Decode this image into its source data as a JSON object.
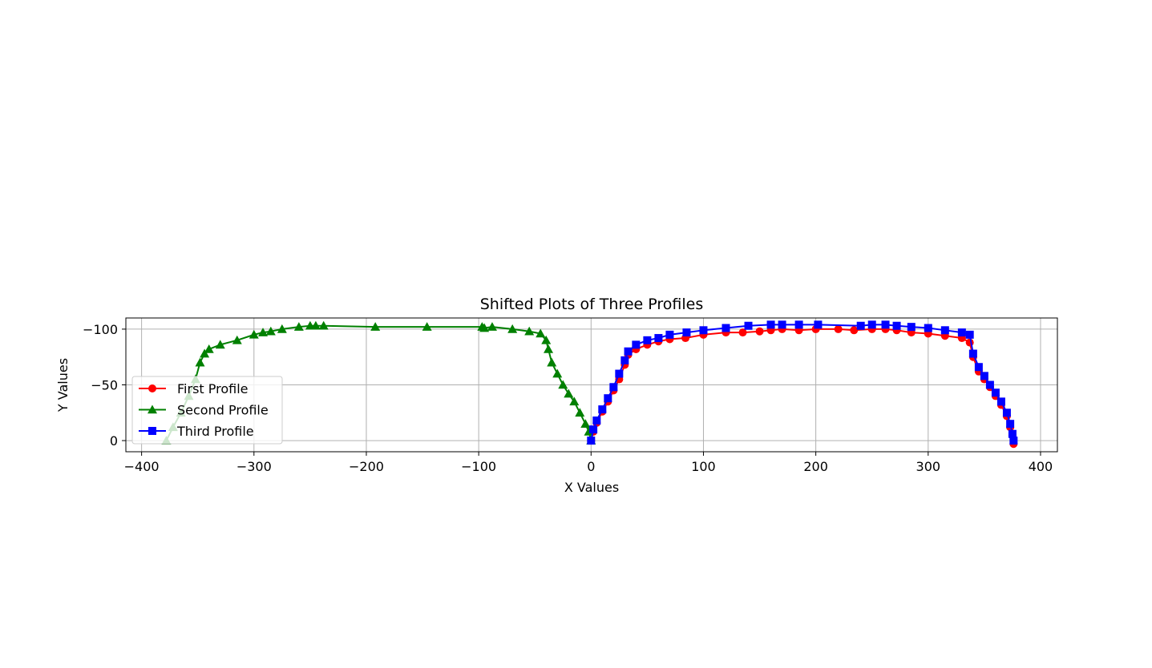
{
  "chart_data": {
    "type": "line",
    "title": "Shifted Plots of Three Profiles",
    "xlabel": "X Values",
    "ylabel": "Y Values",
    "xlim": [
      -414,
      415
    ],
    "ylim": [
      10,
      -110
    ],
    "y_inverted": true,
    "grid": true,
    "legend_position": "lower-left",
    "x_ticks": [
      -400,
      -300,
      -200,
      -100,
      0,
      100,
      200,
      300,
      400
    ],
    "x_tick_labels": [
      "−400",
      "−300",
      "−200",
      "−100",
      "0",
      "100",
      "200",
      "300",
      "400"
    ],
    "y_ticks": [
      -100,
      -50,
      0
    ],
    "y_tick_labels": [
      "−100",
      "−50",
      "0"
    ],
    "series": [
      {
        "name": "First Profile",
        "color": "#ff0000",
        "marker": "circle",
        "x": [
          0,
          2,
          5,
          10,
          15,
          20,
          25,
          30,
          33,
          40,
          50,
          60,
          70,
          84,
          100,
          120,
          135,
          150,
          160,
          170,
          185,
          200,
          220,
          234,
          250,
          262,
          272,
          285,
          300,
          315,
          330,
          337,
          340,
          345,
          350,
          355,
          360,
          365,
          370,
          373,
          375,
          376
        ],
        "y": [
          0,
          -8,
          -16,
          -26,
          -35,
          -45,
          -55,
          -68,
          -77,
          -82,
          -86,
          -89,
          -91,
          -92,
          -95,
          -97,
          -97,
          -98,
          -99,
          -100,
          -99,
          -100,
          -100,
          -99,
          -100,
          -100,
          -99,
          -97,
          -96,
          -94,
          -92,
          -88,
          -75,
          -62,
          -55,
          -48,
          -40,
          -32,
          -22,
          -12,
          -5,
          3
        ]
      },
      {
        "name": "Second Profile",
        "color": "#008000",
        "marker": "triangle",
        "x": [
          -378,
          -372,
          -365,
          -358,
          -352,
          -348,
          -344,
          -340,
          -330,
          -315,
          -300,
          -292,
          -285,
          -275,
          -260,
          -250,
          -245,
          -238,
          -192,
          -146,
          -97,
          -95,
          -88,
          -70,
          -55,
          -45,
          -40,
          -38,
          -35,
          -30,
          -25,
          -20,
          -15,
          -10,
          -5,
          -2,
          0
        ],
        "y": [
          0,
          -12,
          -25,
          -40,
          -55,
          -70,
          -78,
          -82,
          -86,
          -90,
          -95,
          -97,
          -98,
          -100,
          -102,
          -103,
          -103,
          -103,
          -102,
          -102,
          -102,
          -101,
          -102,
          -100,
          -98,
          -96,
          -90,
          -82,
          -70,
          -60,
          -50,
          -42,
          -35,
          -25,
          -15,
          -8,
          0
        ]
      },
      {
        "name": "Third Profile",
        "color": "#0000ff",
        "marker": "square",
        "x": [
          0,
          2,
          5,
          10,
          15,
          20,
          25,
          30,
          33,
          40,
          50,
          60,
          70,
          85,
          100,
          120,
          140,
          160,
          170,
          185,
          202,
          240,
          250,
          262,
          272,
          285,
          300,
          315,
          330,
          337,
          340,
          345,
          350,
          355,
          360,
          365,
          370,
          373,
          375,
          376
        ],
        "y": [
          0,
          -10,
          -18,
          -28,
          -38,
          -48,
          -60,
          -72,
          -80,
          -86,
          -90,
          -92,
          -95,
          -97,
          -99,
          -101,
          -103,
          -104,
          -104,
          -104,
          -104,
          -103,
          -104,
          -104,
          -103,
          -102,
          -101,
          -99,
          -97,
          -95,
          -78,
          -66,
          -58,
          -50,
          -43,
          -35,
          -25,
          -15,
          -6,
          0
        ]
      }
    ]
  }
}
